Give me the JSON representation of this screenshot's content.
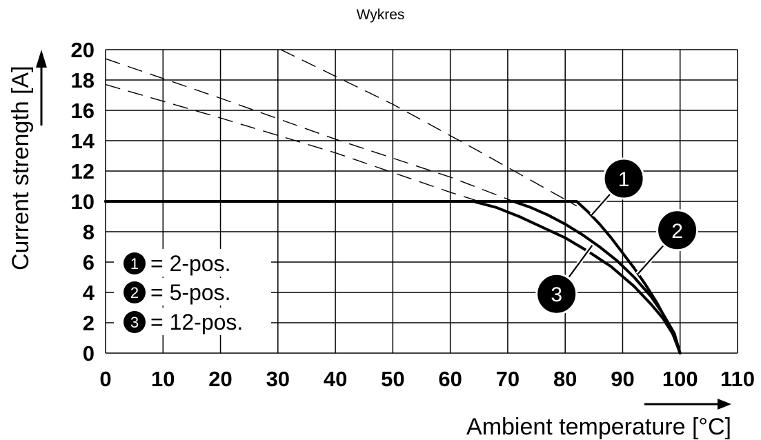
{
  "title": "Wykres",
  "chart_data": {
    "type": "line",
    "xlabel": "Ambient temperature [°C]",
    "ylabel": "Current strength [A]",
    "xlim": [
      0,
      110
    ],
    "ylim": [
      0,
      20
    ],
    "x_ticks": [
      "0",
      "10",
      "20",
      "30",
      "40",
      "50",
      "60",
      "70",
      "80",
      "90",
      "100",
      "110"
    ],
    "y_ticks": [
      "0",
      "2",
      "4",
      "6",
      "8",
      "10",
      "12",
      "14",
      "16",
      "18",
      "20"
    ],
    "grid": true,
    "series": [
      {
        "name": "2-pos.",
        "marker": "1",
        "x": [
          0,
          82,
          84,
          86,
          88,
          90,
          92,
          94,
          96,
          98,
          99,
          100
        ],
        "y": [
          10,
          10,
          9.3,
          8.5,
          7.6,
          6.6,
          5.6,
          4.5,
          3.3,
          1.9,
          1.0,
          0
        ]
      },
      {
        "name": "5-pos.",
        "marker": "2",
        "x": [
          0,
          71,
          74,
          77,
          80,
          83,
          86,
          89,
          92,
          95,
          97,
          99,
          100
        ],
        "y": [
          10,
          10,
          9.6,
          9.1,
          8.5,
          7.8,
          7.0,
          6.1,
          5.0,
          3.7,
          2.6,
          1.3,
          0
        ]
      },
      {
        "name": "12-pos.",
        "marker": "3",
        "x": [
          0,
          64,
          68,
          72,
          76,
          80,
          84,
          88,
          92,
          95,
          97,
          99,
          100
        ],
        "y": [
          10,
          10,
          9.6,
          9.0,
          8.3,
          7.6,
          6.7,
          5.7,
          4.4,
          3.2,
          2.3,
          1.1,
          0
        ]
      }
    ],
    "reference_lines": [
      {
        "x": [
          30.5,
          50,
          65,
          82
        ],
        "y": [
          20,
          16.4,
          13.3,
          9.7
        ]
      },
      {
        "x": [
          0,
          20,
          40,
          60,
          71
        ],
        "y": [
          19.4,
          16.8,
          14.1,
          11.6,
          10
        ]
      },
      {
        "x": [
          0,
          20,
          40,
          60,
          65
        ],
        "y": [
          17.7,
          15.5,
          13.2,
          10.6,
          10
        ]
      }
    ],
    "legend": [
      "= 2-pos.",
      "= 5-pos.",
      "= 12-pos."
    ],
    "legend_position": "bottom-left"
  }
}
